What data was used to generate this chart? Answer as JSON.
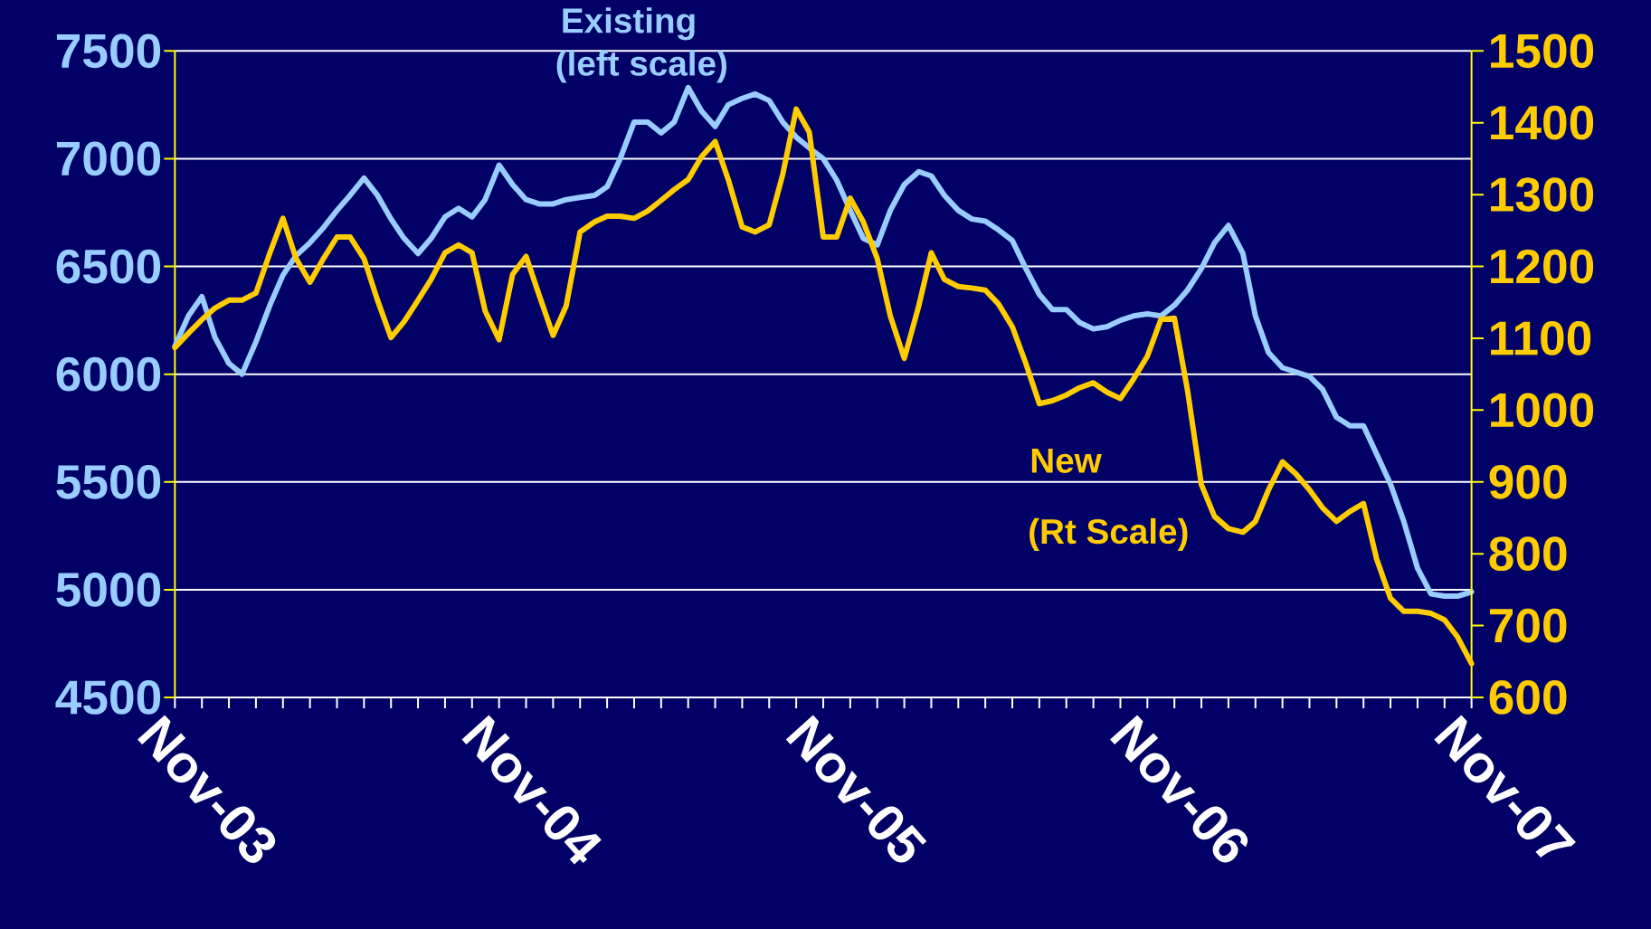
{
  "chart_data": {
    "type": "line",
    "x": [
      "2003-11",
      "2003-11-16",
      "2003-12",
      "2003-12-16",
      "2004-01",
      "2004-01-16",
      "2004-02",
      "2004-02-16",
      "2004-03",
      "2004-03-16",
      "2004-04",
      "2004-04-16",
      "2004-05",
      "2004-05-16",
      "2004-06",
      "2004-06-16",
      "2004-07",
      "2004-07-16",
      "2004-08",
      "2004-08-16",
      "2004-09",
      "2004-09-16",
      "2004-10",
      "2004-10-16",
      "2004-11",
      "2004-11-16",
      "2004-12",
      "2004-12-16",
      "2005-01",
      "2005-01-16",
      "2005-02",
      "2005-02-16",
      "2005-03",
      "2005-03-16",
      "2005-04",
      "2005-04-16",
      "2005-05",
      "2005-05-16",
      "2005-06",
      "2005-06-16",
      "2005-07",
      "2005-07-16",
      "2005-08",
      "2005-08-16",
      "2005-09",
      "2005-09-16",
      "2005-10",
      "2005-10-16",
      "2005-11",
      "2005-11-16",
      "2005-12",
      "2005-12-16",
      "2006-01",
      "2006-01-16",
      "2006-02",
      "2006-02-16",
      "2006-03",
      "2006-03-16",
      "2006-04",
      "2006-04-16",
      "2006-05",
      "2006-05-16",
      "2006-06",
      "2006-06-16",
      "2006-07",
      "2006-07-16",
      "2006-08",
      "2006-08-16",
      "2006-09",
      "2006-09-16",
      "2006-10",
      "2006-10-16",
      "2006-11",
      "2006-11-16",
      "2006-12",
      "2006-12-16",
      "2007-01",
      "2007-01-16",
      "2007-02",
      "2007-02-16",
      "2007-03",
      "2007-03-16",
      "2007-04",
      "2007-04-16",
      "2007-05",
      "2007-05-16",
      "2007-06",
      "2007-06-16",
      "2007-07",
      "2007-07-16",
      "2007-08",
      "2007-08-16",
      "2007-09",
      "2007-09-16",
      "2007-10",
      "2007-10-16",
      "2007-11"
    ],
    "series": [
      {
        "name": "Existing",
        "color": "#99ccff",
        "values": [
          6130,
          6270,
          6360,
          6170,
          6050,
          6000,
          6150,
          6320,
          6460,
          6550,
          6610,
          6680,
          6760,
          6830,
          6910,
          6830,
          6720,
          6630,
          6560,
          6630,
          6730,
          6770,
          6730,
          6810,
          6970,
          6880,
          6810,
          6790,
          6790,
          6810,
          6820,
          6830,
          6870,
          7000,
          7170,
          7170,
          7120,
          7170,
          7330,
          7220,
          7150,
          7250,
          7280,
          7300,
          7270,
          7170,
          7100,
          7050,
          7000,
          6900,
          6760,
          6630,
          6600,
          6760,
          6880,
          6940,
          6920,
          6830,
          6760,
          6720,
          6710,
          6670,
          6620,
          6490,
          6370,
          6300,
          6300,
          6240,
          6210,
          6220,
          6250,
          6270,
          6280,
          6270,
          6320,
          6390,
          6490,
          6610,
          6690,
          6560,
          6270,
          6100,
          6030,
          6010,
          5990,
          5930,
          5800,
          5760,
          5760,
          5630,
          5490,
          5320,
          5100,
          4980,
          4970,
          4970,
          4990
        ]
      },
      {
        "name": "New",
        "color": "#ffcc00",
        "axis": "y2",
        "values": [
          1087,
          1107,
          1126,
          1142,
          1153,
          1153,
          1163,
          1219,
          1267,
          1211,
          1178,
          1211,
          1241,
          1241,
          1211,
          1153,
          1101,
          1123,
          1153,
          1182,
          1219,
          1230,
          1219,
          1138,
          1098,
          1189,
          1214,
          1160,
          1104,
          1145,
          1248,
          1262,
          1270,
          1270,
          1267,
          1277,
          1292,
          1307,
          1321,
          1353,
          1374,
          1321,
          1255,
          1248,
          1258,
          1328,
          1419,
          1387,
          1241,
          1241,
          1295,
          1262,
          1211,
          1131,
          1072,
          1145,
          1219,
          1182,
          1172,
          1170,
          1167,
          1148,
          1116,
          1065,
          1009,
          1013,
          1021,
          1031,
          1038,
          1025,
          1016,
          1043,
          1075,
          1126,
          1128,
          1028,
          896,
          852,
          835,
          830,
          845,
          889,
          928,
          911,
          889,
          864,
          845,
          859,
          870,
          793,
          738,
          720,
          720,
          717,
          708,
          684,
          647
        ]
      }
    ],
    "annotations": [
      "(left scale)",
      "(Rt Scale)"
    ],
    "xlim": [
      "2003-11",
      "2007-11"
    ],
    "xticks": [
      {
        "value": "2003-11",
        "label": "Nov-03"
      },
      {
        "value": "2003-12",
        "label": null
      },
      {
        "value": "2004-01",
        "label": null
      },
      {
        "value": "2004-02",
        "label": null
      },
      {
        "value": "2004-03",
        "label": null
      },
      {
        "value": "2004-04",
        "label": null
      },
      {
        "value": "2004-05",
        "label": null
      },
      {
        "value": "2004-06",
        "label": null
      },
      {
        "value": "2004-07",
        "label": null
      },
      {
        "value": "2004-08",
        "label": null
      },
      {
        "value": "2004-09",
        "label": null
      },
      {
        "value": "2004-10",
        "label": null
      },
      {
        "value": "2004-11",
        "label": "Nov-04"
      },
      {
        "value": "2004-12",
        "label": null
      },
      {
        "value": "2005-01",
        "label": null
      },
      {
        "value": "2005-02",
        "label": null
      },
      {
        "value": "2005-03",
        "label": null
      },
      {
        "value": "2005-04",
        "label": null
      },
      {
        "value": "2005-05",
        "label": null
      },
      {
        "value": "2005-06",
        "label": null
      },
      {
        "value": "2005-07",
        "label": null
      },
      {
        "value": "2005-08",
        "label": null
      },
      {
        "value": "2005-09",
        "label": null
      },
      {
        "value": "2005-10",
        "label": null
      },
      {
        "value": "2005-11",
        "label": "Nov-05"
      },
      {
        "value": "2005-12",
        "label": null
      },
      {
        "value": "2006-01",
        "label": null
      },
      {
        "value": "2006-02",
        "label": null
      },
      {
        "value": "2006-03",
        "label": null
      },
      {
        "value": "2006-04",
        "label": null
      },
      {
        "value": "2006-05",
        "label": null
      },
      {
        "value": "2006-06",
        "label": null
      },
      {
        "value": "2006-07",
        "label": null
      },
      {
        "value": "2006-08",
        "label": null
      },
      {
        "value": "2006-09",
        "label": null
      },
      {
        "value": "2006-10",
        "label": null
      },
      {
        "value": "2006-11",
        "label": "Nov-06"
      },
      {
        "value": "2006-12",
        "label": null
      },
      {
        "value": "2007-01",
        "label": null
      },
      {
        "value": "2007-02",
        "label": null
      },
      {
        "value": "2007-03",
        "label": null
      },
      {
        "value": "2007-04",
        "label": null
      },
      {
        "value": "2007-05",
        "label": null
      },
      {
        "value": "2007-06",
        "label": null
      },
      {
        "value": "2007-07",
        "label": null
      },
      {
        "value": "2007-08",
        "label": null
      },
      {
        "value": "2007-09",
        "label": null
      },
      {
        "value": "2007-10",
        "label": null
      },
      {
        "value": "2007-11",
        "label": "Nov-07"
      }
    ],
    "ylim": [
      4500,
      7500
    ],
    "yticks": [
      4500,
      5000,
      5500,
      6000,
      6500,
      7000,
      7500
    ],
    "y2lim": [
      600,
      1500
    ],
    "y2ticks": [
      600,
      700,
      800,
      900,
      1000,
      1100,
      1200,
      1300,
      1400,
      1500
    ],
    "grid": "y",
    "marker": "none",
    "line_style": "solid"
  }
}
